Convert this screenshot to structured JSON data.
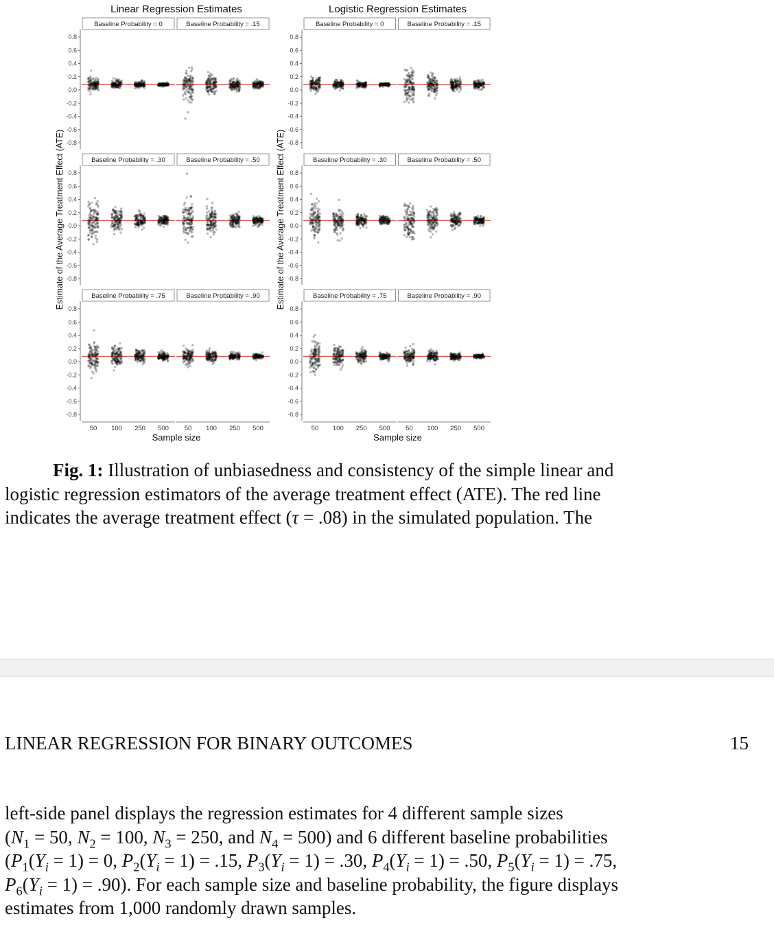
{
  "chart_data": [
    {
      "type": "scatter",
      "title": "Linear Regression Estimates",
      "xlabel": "Sample size",
      "ylabel": "Estimate of the Average Treatment Effect (ATE)",
      "ylim": [
        -0.8,
        0.8
      ],
      "yticks": [
        "0.8",
        "0.6",
        "0.4",
        "0.2",
        "0.0",
        "-0.2",
        "-0.4",
        "-0.6",
        "-0.8"
      ],
      "categories": [
        "50",
        "100",
        "250",
        "500"
      ],
      "reference_line": {
        "value": 0.08,
        "color": "#e8423c"
      },
      "panels": [
        {
          "label": "Baseline Probability = 0",
          "spread": [
            0.12,
            0.07,
            0.045,
            0.025
          ]
        },
        {
          "label": "Baseline Probability = .15",
          "spread": [
            0.28,
            0.17,
            0.09,
            0.06
          ]
        },
        {
          "label": "Baseline Probability = .30",
          "spread": [
            0.3,
            0.2,
            0.11,
            0.07
          ]
        },
        {
          "label": "Baseline Probability = .50",
          "spread": [
            0.3,
            0.2,
            0.11,
            0.07
          ]
        },
        {
          "label": "Baseline Probability = .75",
          "spread": [
            0.24,
            0.16,
            0.1,
            0.06
          ]
        },
        {
          "label": "Baseline Probability = .90",
          "spread": [
            0.13,
            0.09,
            0.055,
            0.035
          ]
        }
      ]
    },
    {
      "type": "scatter",
      "title": "Logistic Regression Estimates",
      "xlabel": "Sample size",
      "ylabel": "Estimate of the Average Treatment Effect (ATE)",
      "ylim": [
        -0.8,
        0.8
      ],
      "yticks": [
        "0.8",
        "0.6",
        "0.4",
        "0.2",
        "0.0",
        "-0.2",
        "-0.4",
        "-0.6",
        "-0.8"
      ],
      "categories": [
        "50",
        "100",
        "250",
        "500"
      ],
      "reference_line": {
        "value": 0.08,
        "color": "#e8423c"
      },
      "panels": [
        {
          "label": "Baseline Probability = 0",
          "spread": [
            0.12,
            0.07,
            0.045,
            0.025
          ]
        },
        {
          "label": "Baseline Probability = .15",
          "spread": [
            0.28,
            0.17,
            0.09,
            0.06
          ]
        },
        {
          "label": "Baseline Probability = .30",
          "spread": [
            0.3,
            0.2,
            0.11,
            0.07
          ]
        },
        {
          "label": "Baseline Probability = .50",
          "spread": [
            0.3,
            0.2,
            0.11,
            0.07
          ]
        },
        {
          "label": "Baseline Probability = .75",
          "spread": [
            0.24,
            0.16,
            0.1,
            0.06
          ]
        },
        {
          "label": "Baseline Probability = .90",
          "spread": [
            0.13,
            0.09,
            0.055,
            0.035
          ]
        }
      ]
    }
  ],
  "caption": {
    "lead": "Fig. 1:",
    "line1": "Illustration of unbiasedness and consistency of the simple linear and",
    "line2": "logistic regression estimators of the average treatment effect (ATE). The red line",
    "line3a": "indicates the average treatment effect (",
    "tau": "τ",
    "line3b": " = .08) in the simulated population.  The"
  },
  "header": {
    "title": "LINEAR REGRESSION FOR BINARY OUTCOMES",
    "page_number": "15"
  },
  "body": {
    "line1": "left-side panel displays the regression estimates for 4 different sample sizes",
    "line2": "(N1 = 50, N2 = 100, N3 = 250, and N4 = 500) and 6 different baseline probabilities",
    "line3": "(P1(Yi = 1) = 0, P2(Yi = 1) = .15, P3(Yi = 1) = .30, P4(Yi = 1) = .50, P5(Yi = 1) = .75,",
    "line4": "P6(Yi = 1) = .90).  For each sample size and baseline probability, the figure displays",
    "line5": "estimates from 1,000 randomly drawn samples."
  }
}
